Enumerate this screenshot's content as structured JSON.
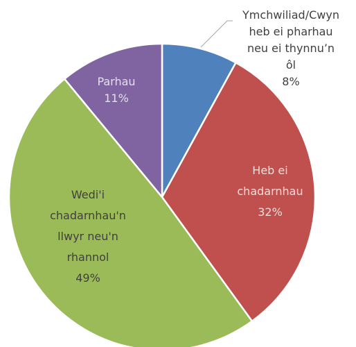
{
  "chart_data": {
    "type": "pie",
    "categories": [
      [
        "Ymchwiliad/Cwyn",
        "heb ei pharhau",
        "neu ei thynnu’n",
        "ôl"
      ],
      [
        "Heb ei",
        "chadarnhau"
      ],
      [
        "Wedi'i",
        "chadarnhau'n",
        "llwyr neu'n",
        "rhannol"
      ],
      [
        "Parhau"
      ]
    ],
    "values": [
      8,
      32,
      49,
      11
    ],
    "value_labels": [
      "8%",
      "32%",
      "49%",
      "11%"
    ],
    "colors": [
      "#4f81bd",
      "#c0504d",
      "#9bbb59",
      "#8064a2"
    ]
  }
}
